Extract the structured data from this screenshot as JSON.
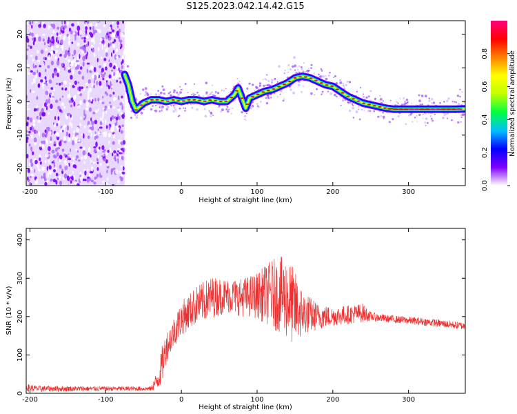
{
  "title": "S125.2023.042.14.42.G15",
  "chart_data": [
    {
      "type": "heatmap",
      "xlabel": "Height of straight line (km)",
      "ylabel": "Frequency (Hz)",
      "xlim": [
        -205,
        375
      ],
      "ylim": [
        -25,
        24
      ],
      "x_ticks": [
        -200,
        -100,
        0,
        100,
        200,
        300
      ],
      "y_ticks": [
        -20,
        -10,
        0,
        10,
        20
      ],
      "colorbar": {
        "label": "Normalized spectral amplitude",
        "range": [
          0,
          1
        ],
        "ticks": [
          0.0,
          0.2,
          0.4,
          0.6,
          0.8
        ],
        "colormap": [
          "#ffffff",
          "#8000ff",
          "#0000ff",
          "#00c0ff",
          "#00ff40",
          "#c0ff00",
          "#ffff00",
          "#ff8000",
          "#ff0000",
          "#ff0080"
        ]
      },
      "noise_region_x": [
        -205,
        -75
      ],
      "ridge": {
        "x": [
          -75,
          -70,
          -65,
          -60,
          -55,
          -50,
          -40,
          -30,
          -20,
          -10,
          0,
          10,
          20,
          30,
          40,
          50,
          60,
          70,
          75,
          80,
          85,
          90,
          100,
          110,
          120,
          130,
          140,
          150,
          160,
          170,
          180,
          190,
          200,
          210,
          220,
          230,
          240,
          250,
          260,
          270,
          280,
          300,
          320,
          340,
          360,
          375
        ],
        "freq": [
          8,
          5,
          0,
          -2.5,
          -1.5,
          -0.5,
          0.5,
          0.5,
          0,
          0.5,
          0,
          0.5,
          0.5,
          0,
          0.5,
          0,
          0,
          2,
          4,
          1,
          -2,
          1,
          2,
          3,
          3.5,
          4.5,
          5.5,
          7,
          7.5,
          7,
          6,
          5,
          4.5,
          3,
          1.5,
          0.5,
          -0.5,
          -1,
          -1.5,
          -2,
          -2.3,
          -2.3,
          -2.3,
          -2.3,
          -2.3,
          -2.2
        ]
      }
    },
    {
      "type": "line",
      "xlabel": "Height of straight line (km)",
      "ylabel": "SNR (10 * v/v)",
      "xlim": [
        -205,
        375
      ],
      "ylim": [
        0,
        430
      ],
      "x_ticks": [
        -200,
        -100,
        0,
        100,
        200,
        300
      ],
      "y_ticks": [
        0,
        100,
        200,
        300,
        400
      ],
      "line_color": "#f03030",
      "envelope": {
        "x": [
          -205,
          -190,
          -100,
          -40,
          -30,
          -25,
          -20,
          -10,
          0,
          20,
          40,
          60,
          80,
          100,
          120,
          140,
          150,
          160,
          180,
          200,
          220,
          240,
          250,
          270,
          300,
          330,
          360,
          375
        ],
        "mean": [
          15,
          12,
          12,
          12,
          40,
          80,
          120,
          160,
          195,
          230,
          250,
          255,
          250,
          255,
          260,
          250,
          220,
          210,
          200,
          200,
          205,
          210,
          200,
          195,
          190,
          185,
          178,
          175
        ],
        "spread": [
          10,
          8,
          6,
          6,
          30,
          50,
          40,
          40,
          45,
          50,
          55,
          45,
          50,
          60,
          90,
          110,
          100,
          60,
          35,
          25,
          25,
          25,
          12,
          10,
          10,
          10,
          10,
          10
        ]
      }
    }
  ]
}
